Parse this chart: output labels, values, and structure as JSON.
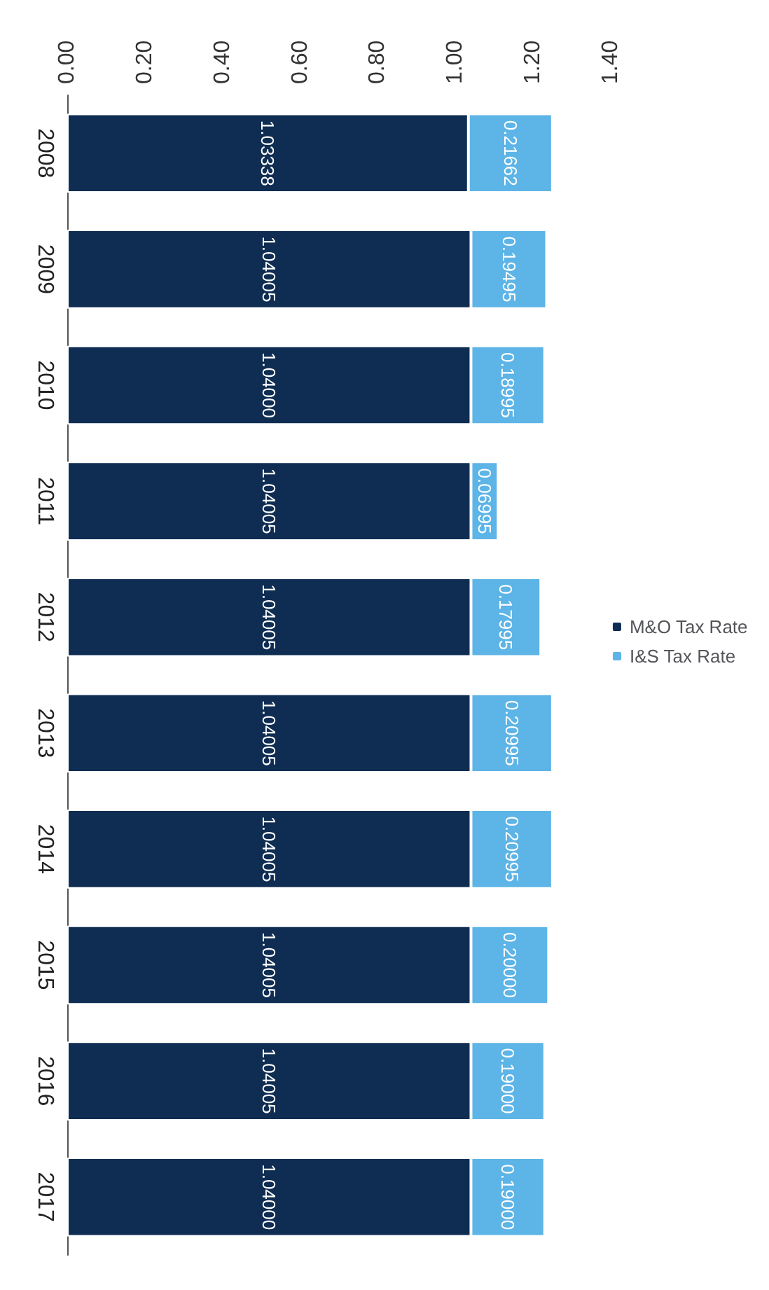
{
  "chart_data": {
    "type": "bar",
    "orientation": "horizontal",
    "stacked": true,
    "categories": [
      "2008",
      "2009",
      "2010",
      "2011",
      "2012",
      "2013",
      "2014",
      "2015",
      "2016",
      "2017"
    ],
    "series": [
      {
        "name": "M&O Tax Rate",
        "color": "#0f2d52",
        "values": [
          1.03338,
          1.04005,
          1.04,
          1.04005,
          1.04005,
          1.04005,
          1.04005,
          1.04005,
          1.04005,
          1.04
        ],
        "value_labels": [
          "1.03338",
          "1.04005",
          "1.04000",
          "1.04005",
          "1.04005",
          "1.04005",
          "1.04005",
          "1.04005",
          "1.04005",
          "1.04000"
        ]
      },
      {
        "name": "I&S Tax Rate",
        "color": "#5db4e6",
        "values": [
          0.21662,
          0.19495,
          0.18995,
          0.06995,
          0.17995,
          0.20995,
          0.20995,
          0.2,
          0.19,
          0.19
        ],
        "value_labels": [
          "0.21662",
          "0.19495",
          "0.18995",
          "0.06995",
          "0.17995",
          "0.20995",
          "0.20995",
          "0.20000",
          "0.19000",
          "0.19000"
        ]
      }
    ],
    "xlim": [
      0,
      1.4
    ],
    "xticks": [
      {
        "value": 0,
        "label": "0.00"
      },
      {
        "value": 0.2,
        "label": "0.20"
      },
      {
        "value": 0.4,
        "label": "0.40"
      },
      {
        "value": 0.6,
        "label": "0.60"
      },
      {
        "value": 0.8,
        "label": "0.80"
      },
      {
        "value": 1,
        "label": "1.00"
      },
      {
        "value": 1.2,
        "label": "1.20"
      },
      {
        "value": 1.4,
        "label": "1.40"
      }
    ],
    "grid": false,
    "legend": "right"
  }
}
